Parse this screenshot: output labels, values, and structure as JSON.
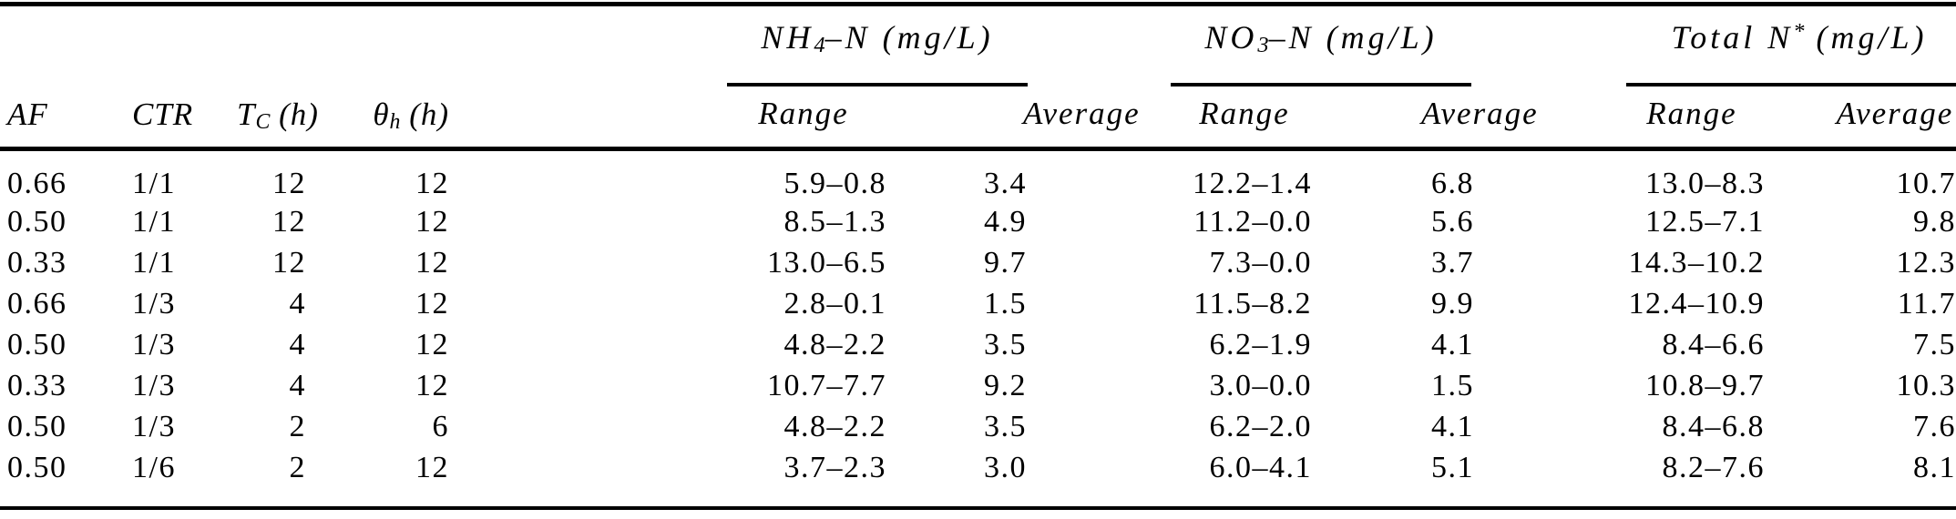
{
  "table": {
    "headers": {
      "af": "AF",
      "ctr": "CTR",
      "tc_base": "T",
      "tc_sub": "C",
      "tc_unit": " (h)",
      "theta_base": "θ",
      "theta_sub": "h",
      "theta_unit": " (h)",
      "nh4_pre": "NH",
      "nh4_sub": "4",
      "nh4_post": "–N (mg/L)",
      "no3_pre": "NO",
      "no3_sub": "3",
      "no3_post": "–N (mg/L)",
      "totaln_pre": "Total N",
      "totaln_sup": "*",
      "totaln_post": " (mg/L)",
      "range": "Range",
      "average": "Average"
    },
    "rows": [
      [
        "0.66",
        "1/1",
        "12",
        "12",
        "5.9–0.8",
        "3.4",
        "12.2–1.4",
        "6.8",
        "13.0–8.3",
        "10.7"
      ],
      [
        "0.50",
        "1/1",
        "12",
        "12",
        "8.5–1.3",
        "4.9",
        "11.2–0.0",
        "5.6",
        "12.5–7.1",
        "9.8"
      ],
      [
        "0.33",
        "1/1",
        "12",
        "12",
        "13.0–6.5",
        "9.7",
        "7.3–0.0",
        "3.7",
        "14.3–10.2",
        "12.3"
      ],
      [
        "0.66",
        "1/3",
        "4",
        "12",
        "2.8–0.1",
        "1.5",
        "11.5–8.2",
        "9.9",
        "12.4–10.9",
        "11.7"
      ],
      [
        "0.50",
        "1/3",
        "4",
        "12",
        "4.8–2.2",
        "3.5",
        "6.2–1.9",
        "4.1",
        "8.4–6.6",
        "7.5"
      ],
      [
        "0.33",
        "1/3",
        "4",
        "12",
        "10.7–7.7",
        "9.2",
        "3.0–0.0",
        "1.5",
        "10.8–9.7",
        "10.3"
      ],
      [
        "0.50",
        "1/3",
        "2",
        "6",
        "4.8–2.2",
        "3.5",
        "6.2–2.0",
        "4.1",
        "8.4–6.8",
        "7.6"
      ],
      [
        "0.50",
        "1/6",
        "2",
        "12",
        "3.7–2.3",
        "3.0",
        "6.0–4.1",
        "5.1",
        "8.2–7.6",
        "8.1"
      ]
    ]
  },
  "colors": {
    "rule": "#000000",
    "text": "#000000",
    "background": "#ffffff"
  }
}
